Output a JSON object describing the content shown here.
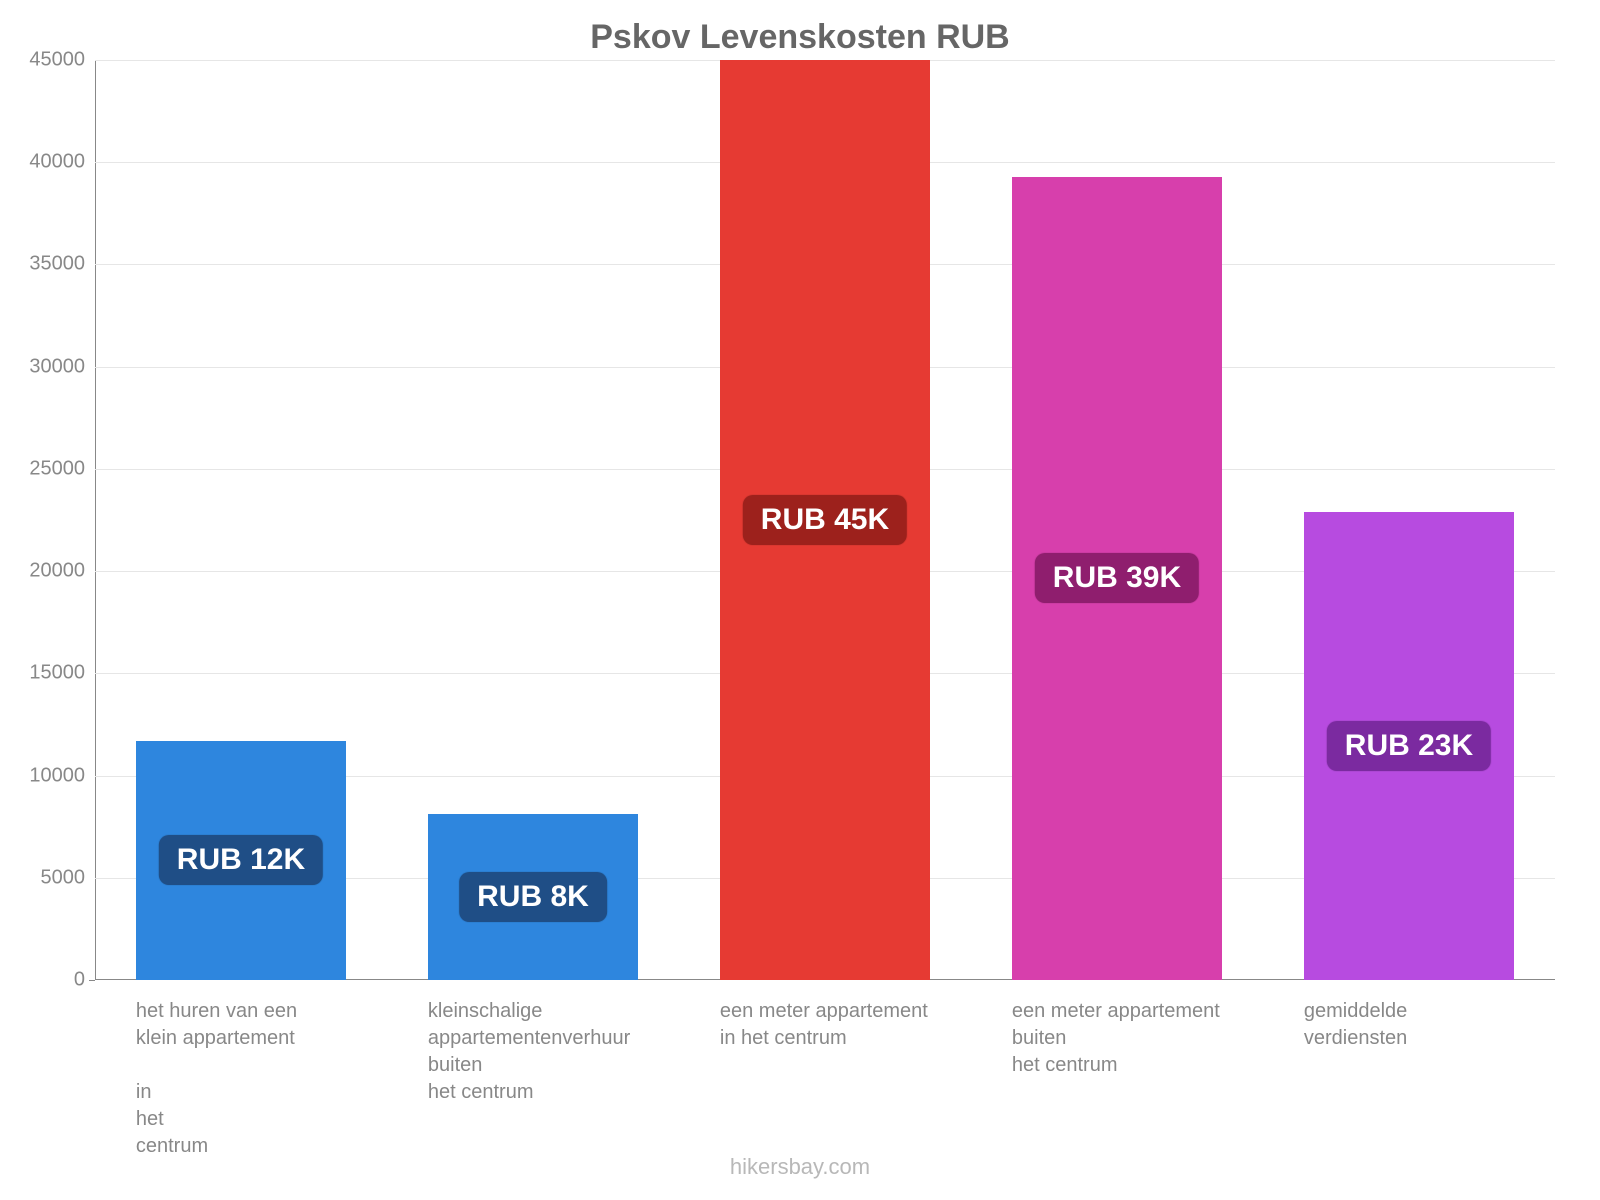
{
  "chart": {
    "type": "bar",
    "title": "Pskov Levenskosten RUB",
    "title_fontsize": 34,
    "title_color": "#666666",
    "background_color": "#ffffff",
    "grid_color": "#e6e6e6",
    "axis_color": "#888888",
    "tick_label_color": "#888888",
    "tick_label_fontsize": 20,
    "category_label_color": "#888888",
    "category_label_fontsize": 20,
    "ylim": [
      0,
      45000
    ],
    "ytick_step": 5000,
    "yticks": [
      0,
      5000,
      10000,
      15000,
      20000,
      25000,
      30000,
      35000,
      40000,
      45000
    ],
    "bar_width_ratio": 0.72,
    "credit": "hikersbay.com",
    "credit_color": "#b8b8b8",
    "badge_fontsize": 30,
    "badge_text_color": "#ffffff",
    "categories": [
      "het huren van een\nklein appartement\n\nin\nhet\ncentrum",
      "kleinschalige\nappartementenverhuur\nbuiten\nhet centrum",
      "een meter appartement\nin het centrum",
      "een meter appartement\nbuiten\nhet centrum",
      "gemiddelde\nverdiensten"
    ],
    "values": [
      11700,
      8100,
      45000,
      39300,
      22900
    ],
    "bar_colors": [
      "#2e86de",
      "#2e86de",
      "#e63a33",
      "#d73fac",
      "#b74be0"
    ],
    "badge_colors": [
      "#1f4e86",
      "#1f4e86",
      "#9d211c",
      "#8f1e6e",
      "#7b2aa0"
    ],
    "badge_labels": [
      "RUB 12K",
      "RUB 8K",
      "RUB 45K",
      "RUB 39K",
      "RUB 23K"
    ]
  }
}
